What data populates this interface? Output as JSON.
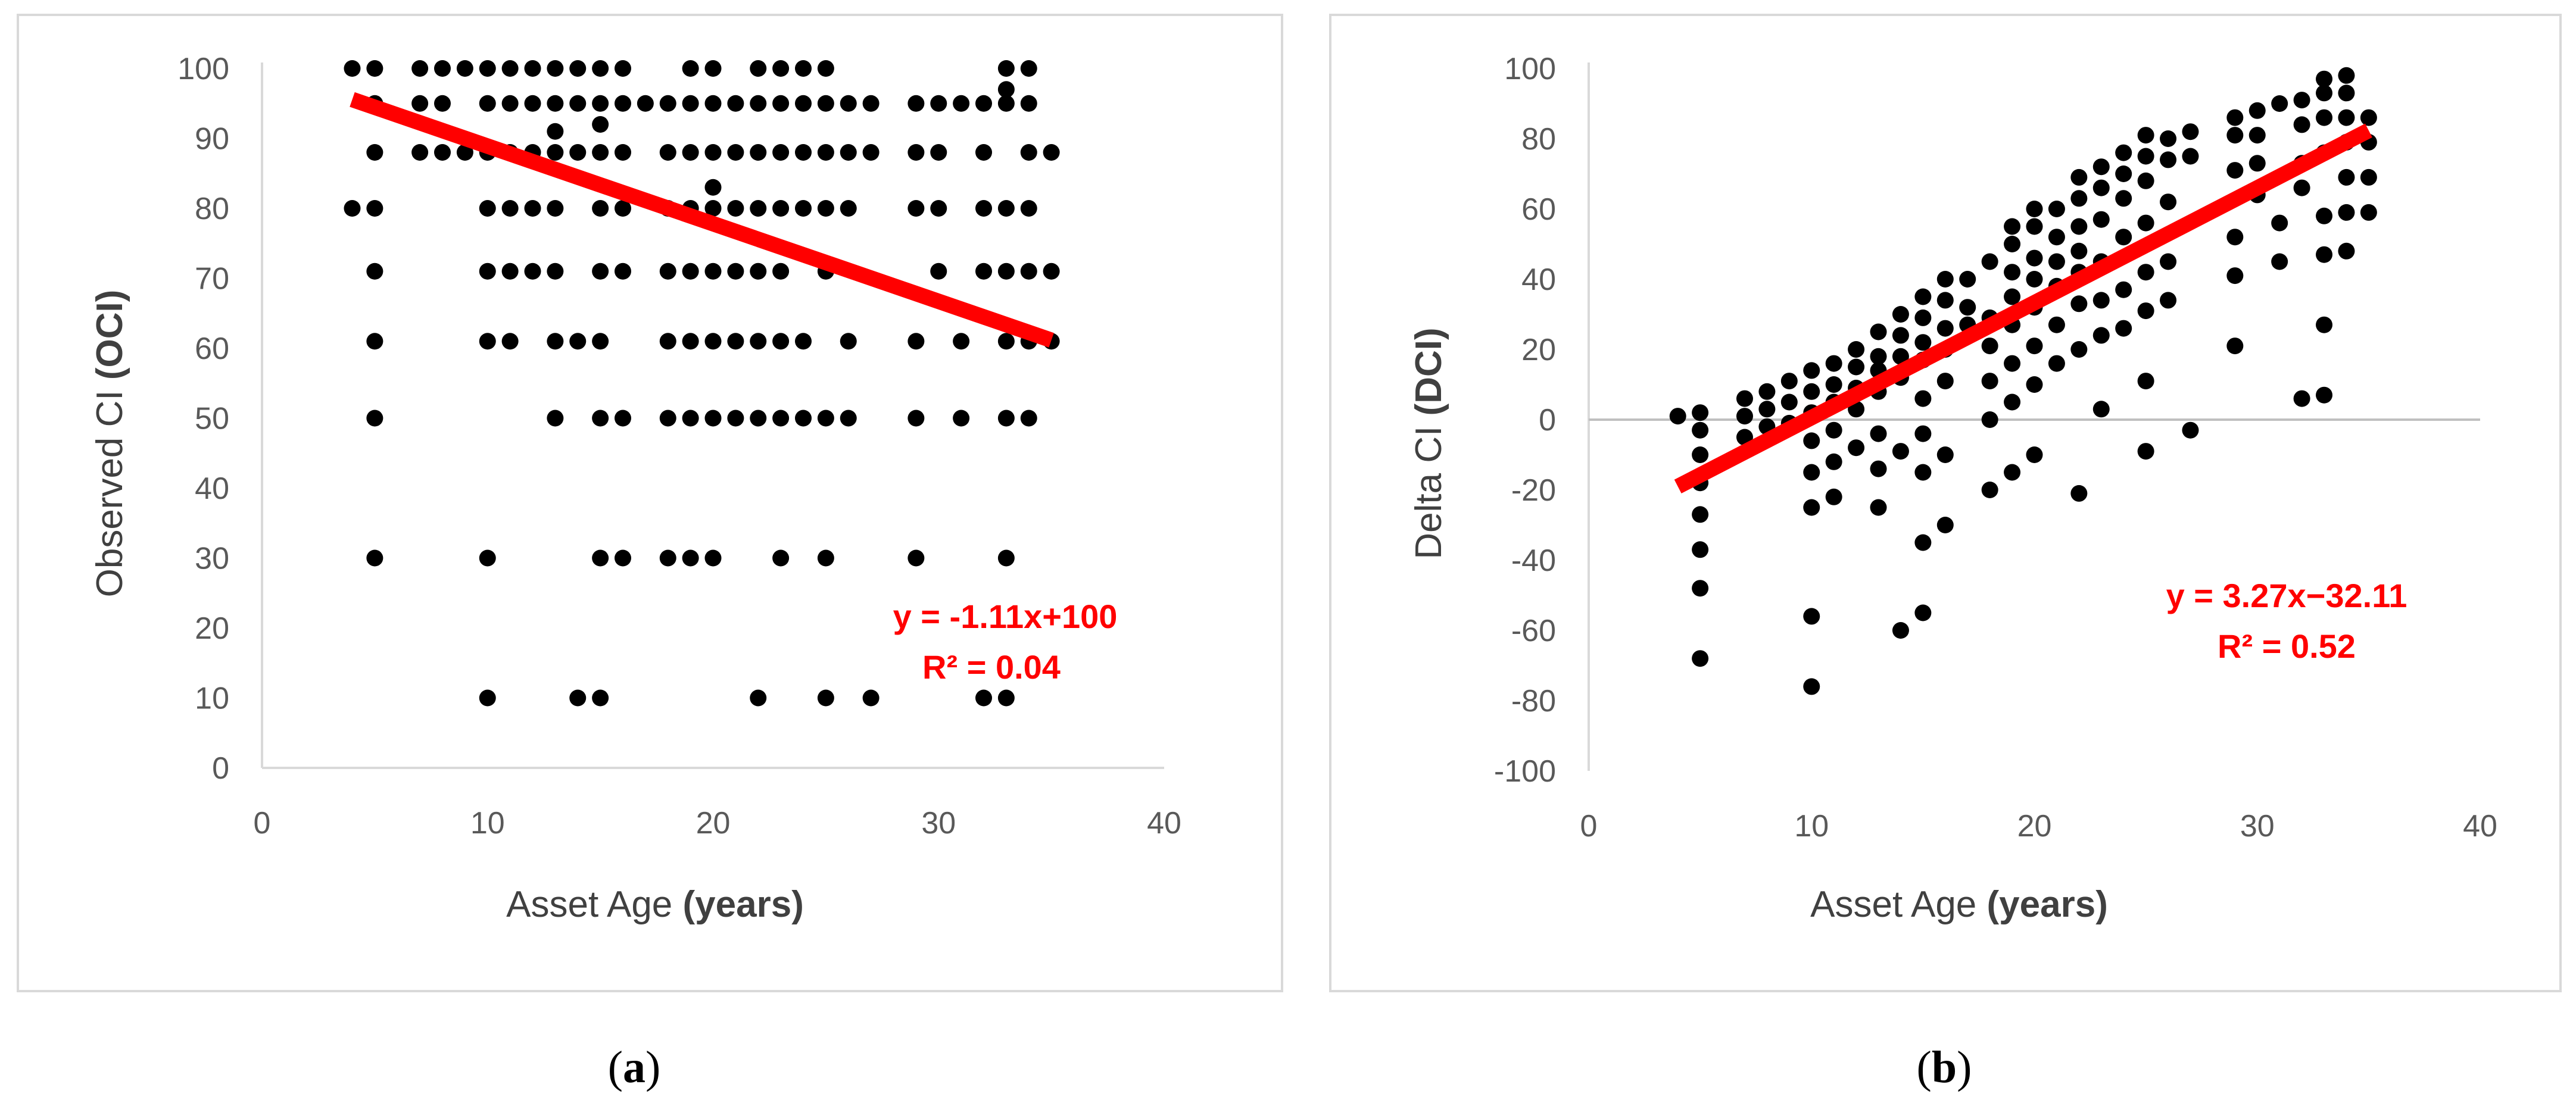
{
  "chart_data": [
    {
      "type": "scatter",
      "panel": "(a)",
      "panel_letter": "a",
      "xlabel": "Asset Age",
      "xlabel_bold": "(years)",
      "ylabel": "Observed CI",
      "ylabel_bold": "(OCI)",
      "xlim": [
        0,
        40
      ],
      "ylim": [
        0,
        100
      ],
      "xticks": [
        0,
        10,
        20,
        30,
        40
      ],
      "yticks": [
        0,
        10,
        20,
        30,
        40,
        50,
        60,
        70,
        80,
        90,
        100
      ],
      "zero_line": false,
      "trendline": {
        "slope": -1.11,
        "intercept": 100,
        "x_range": [
          4,
          35
        ],
        "color": "#ff0000"
      },
      "equation": "y = -1.11x+100",
      "r_squared": "R² = 0.04",
      "points": [
        [
          4,
          100
        ],
        [
          5,
          100
        ],
        [
          4,
          80
        ],
        [
          5,
          80
        ],
        [
          5,
          95
        ],
        [
          5,
          88
        ],
        [
          5,
          71
        ],
        [
          5,
          61
        ],
        [
          5,
          50
        ],
        [
          5,
          30
        ],
        [
          7,
          100
        ],
        [
          8,
          100
        ],
        [
          9,
          100
        ],
        [
          10,
          100
        ],
        [
          11,
          100
        ],
        [
          12,
          100
        ],
        [
          13,
          100
        ],
        [
          14,
          100
        ],
        [
          15,
          100
        ],
        [
          16,
          100
        ],
        [
          7,
          95
        ],
        [
          8,
          95
        ],
        [
          10,
          95
        ],
        [
          11,
          95
        ],
        [
          12,
          95
        ],
        [
          13,
          95
        ],
        [
          14,
          95
        ],
        [
          15,
          95
        ],
        [
          16,
          95
        ],
        [
          17,
          95
        ],
        [
          18,
          95
        ],
        [
          19,
          95
        ],
        [
          20,
          95
        ],
        [
          21,
          95
        ],
        [
          22,
          95
        ],
        [
          23,
          95
        ],
        [
          24,
          95
        ],
        [
          25,
          95
        ],
        [
          26,
          95
        ],
        [
          27,
          95
        ],
        [
          7,
          88
        ],
        [
          8,
          88
        ],
        [
          9,
          88
        ],
        [
          10,
          88
        ],
        [
          11,
          88
        ],
        [
          12,
          88
        ],
        [
          13,
          88
        ],
        [
          14,
          88
        ],
        [
          15,
          88
        ],
        [
          16,
          88
        ],
        [
          18,
          88
        ],
        [
          19,
          88
        ],
        [
          20,
          88
        ],
        [
          21,
          88
        ],
        [
          22,
          88
        ],
        [
          23,
          88
        ],
        [
          24,
          88
        ],
        [
          25,
          88
        ],
        [
          26,
          88
        ],
        [
          27,
          88
        ],
        [
          13,
          91
        ],
        [
          15,
          92
        ],
        [
          10,
          80
        ],
        [
          11,
          80
        ],
        [
          12,
          80
        ],
        [
          13,
          80
        ],
        [
          15,
          80
        ],
        [
          16,
          80
        ],
        [
          18,
          80
        ],
        [
          19,
          80
        ],
        [
          20,
          80
        ],
        [
          21,
          80
        ],
        [
          22,
          80
        ],
        [
          23,
          80
        ],
        [
          24,
          80
        ],
        [
          25,
          80
        ],
        [
          26,
          80
        ],
        [
          20,
          83
        ],
        [
          10,
          71
        ],
        [
          11,
          71
        ],
        [
          12,
          71
        ],
        [
          13,
          71
        ],
        [
          15,
          71
        ],
        [
          16,
          71
        ],
        [
          18,
          71
        ],
        [
          19,
          71
        ],
        [
          20,
          71
        ],
        [
          21,
          71
        ],
        [
          22,
          71
        ],
        [
          23,
          71
        ],
        [
          25,
          71
        ],
        [
          10,
          61
        ],
        [
          11,
          61
        ],
        [
          13,
          61
        ],
        [
          14,
          61
        ],
        [
          15,
          61
        ],
        [
          18,
          61
        ],
        [
          19,
          61
        ],
        [
          20,
          61
        ],
        [
          21,
          61
        ],
        [
          22,
          61
        ],
        [
          23,
          61
        ],
        [
          24,
          61
        ],
        [
          26,
          61
        ],
        [
          13,
          50
        ],
        [
          15,
          50
        ],
        [
          16,
          50
        ],
        [
          18,
          50
        ],
        [
          19,
          50
        ],
        [
          20,
          50
        ],
        [
          21,
          50
        ],
        [
          22,
          50
        ],
        [
          23,
          50
        ],
        [
          24,
          50
        ],
        [
          25,
          50
        ],
        [
          26,
          50
        ],
        [
          10,
          30
        ],
        [
          15,
          30
        ],
        [
          16,
          30
        ],
        [
          18,
          30
        ],
        [
          19,
          30
        ],
        [
          20,
          30
        ],
        [
          23,
          30
        ],
        [
          25,
          30
        ],
        [
          29,
          30
        ],
        [
          33,
          30
        ],
        [
          10,
          10
        ],
        [
          14,
          10
        ],
        [
          15,
          10
        ],
        [
          22,
          10
        ],
        [
          25,
          10
        ],
        [
          27,
          10
        ],
        [
          32,
          10
        ],
        [
          33,
          10
        ],
        [
          19,
          100
        ],
        [
          20,
          100
        ],
        [
          22,
          100
        ],
        [
          23,
          100
        ],
        [
          24,
          100
        ],
        [
          25,
          100
        ],
        [
          29,
          95
        ],
        [
          30,
          95
        ],
        [
          31,
          95
        ],
        [
          32,
          95
        ],
        [
          33,
          95
        ],
        [
          34,
          95
        ],
        [
          33,
          97
        ],
        [
          33,
          100
        ],
        [
          34,
          100
        ],
        [
          29,
          88
        ],
        [
          30,
          88
        ],
        [
          32,
          88
        ],
        [
          34,
          88
        ],
        [
          35,
          88
        ],
        [
          29,
          80
        ],
        [
          30,
          80
        ],
        [
          32,
          80
        ],
        [
          33,
          80
        ],
        [
          34,
          80
        ],
        [
          30,
          71
        ],
        [
          32,
          71
        ],
        [
          33,
          71
        ],
        [
          34,
          71
        ],
        [
          35,
          71
        ],
        [
          29,
          61
        ],
        [
          31,
          61
        ],
        [
          33,
          61
        ],
        [
          34,
          61
        ],
        [
          35,
          61
        ],
        [
          29,
          50
        ],
        [
          31,
          50
        ],
        [
          33,
          50
        ],
        [
          34,
          50
        ]
      ]
    },
    {
      "type": "scatter",
      "panel": "(b)",
      "panel_letter": "b",
      "xlabel": "Asset Age",
      "xlabel_bold": "(years)",
      "ylabel": "Delta CI",
      "ylabel_bold": "(DCI)",
      "xlim": [
        0,
        40
      ],
      "ylim": [
        -100,
        100
      ],
      "xticks": [
        0,
        10,
        20,
        30,
        40
      ],
      "yticks": [
        -100,
        -80,
        -60,
        -40,
        -20,
        0,
        20,
        40,
        60,
        80,
        100
      ],
      "zero_line": true,
      "trendline": {
        "slope": 3.27,
        "intercept": -32.11,
        "x_range": [
          4,
          35
        ],
        "color": "#ff0000"
      },
      "equation": "y = 3.27x−32.11",
      "r_squared": "R² = 0.52",
      "points": [
        [
          4,
          1
        ],
        [
          5,
          2
        ],
        [
          5,
          -3
        ],
        [
          5,
          -10
        ],
        [
          5,
          -18
        ],
        [
          5,
          -27
        ],
        [
          5,
          -37
        ],
        [
          5,
          -48
        ],
        [
          5,
          -68
        ],
        [
          7,
          6
        ],
        [
          7,
          1
        ],
        [
          7,
          -5
        ],
        [
          8,
          8
        ],
        [
          8,
          3
        ],
        [
          8,
          -2
        ],
        [
          9,
          11
        ],
        [
          9,
          5
        ],
        [
          9,
          -1
        ],
        [
          10,
          14
        ],
        [
          10,
          8
        ],
        [
          10,
          2
        ],
        [
          10,
          -6
        ],
        [
          10,
          -15
        ],
        [
          10,
          -25
        ],
        [
          10,
          -56
        ],
        [
          10,
          -76
        ],
        [
          11,
          16
        ],
        [
          11,
          10
        ],
        [
          11,
          5
        ],
        [
          11,
          -3
        ],
        [
          11,
          -12
        ],
        [
          11,
          -22
        ],
        [
          12,
          20
        ],
        [
          12,
          15
        ],
        [
          12,
          9
        ],
        [
          12,
          3
        ],
        [
          12,
          -8
        ],
        [
          13,
          25
        ],
        [
          13,
          18
        ],
        [
          13,
          14
        ],
        [
          13,
          8
        ],
        [
          13,
          -4
        ],
        [
          13,
          -14
        ],
        [
          13,
          -25
        ],
        [
          14,
          30
        ],
        [
          14,
          24
        ],
        [
          14,
          18
        ],
        [
          14,
          12
        ],
        [
          14,
          -9
        ],
        [
          14,
          -60
        ],
        [
          15,
          35
        ],
        [
          15,
          29
        ],
        [
          15,
          22
        ],
        [
          15,
          17
        ],
        [
          15,
          6
        ],
        [
          15,
          -4
        ],
        [
          15,
          -15
        ],
        [
          15,
          -35
        ],
        [
          15,
          -55
        ],
        [
          16,
          40
        ],
        [
          16,
          34
        ],
        [
          16,
          26
        ],
        [
          16,
          20
        ],
        [
          16,
          11
        ],
        [
          16,
          -10
        ],
        [
          16,
          -30
        ],
        [
          17,
          40
        ],
        [
          17,
          32
        ],
        [
          17,
          27
        ],
        [
          18,
          45
        ],
        [
          18,
          29
        ],
        [
          18,
          21
        ],
        [
          18,
          11
        ],
        [
          18,
          0
        ],
        [
          18,
          -20
        ],
        [
          19,
          55
        ],
        [
          19,
          50
        ],
        [
          19,
          42
        ],
        [
          19,
          35
        ],
        [
          19,
          27
        ],
        [
          19,
          16
        ],
        [
          19,
          5
        ],
        [
          19,
          -15
        ],
        [
          20,
          60
        ],
        [
          20,
          55
        ],
        [
          20,
          46
        ],
        [
          20,
          40
        ],
        [
          20,
          32
        ],
        [
          20,
          21
        ],
        [
          20,
          10
        ],
        [
          20,
          -10
        ],
        [
          21,
          60
        ],
        [
          21,
          52
        ],
        [
          21,
          45
        ],
        [
          21,
          38
        ],
        [
          21,
          27
        ],
        [
          21,
          16
        ],
        [
          22,
          69
        ],
        [
          22,
          63
        ],
        [
          22,
          55
        ],
        [
          22,
          48
        ],
        [
          22,
          42
        ],
        [
          22,
          33
        ],
        [
          22,
          20
        ],
        [
          22,
          -21
        ],
        [
          23,
          72
        ],
        [
          23,
          66
        ],
        [
          23,
          57
        ],
        [
          23,
          45
        ],
        [
          23,
          34
        ],
        [
          23,
          24
        ],
        [
          23,
          3
        ],
        [
          24,
          76
        ],
        [
          24,
          70
        ],
        [
          24,
          63
        ],
        [
          24,
          52
        ],
        [
          24,
          37
        ],
        [
          24,
          26
        ],
        [
          25,
          81
        ],
        [
          25,
          75
        ],
        [
          25,
          68
        ],
        [
          25,
          56
        ],
        [
          25,
          42
        ],
        [
          25,
          31
        ],
        [
          25,
          11
        ],
        [
          25,
          -9
        ],
        [
          26,
          80
        ],
        [
          26,
          74
        ],
        [
          26,
          62
        ],
        [
          26,
          45
        ],
        [
          26,
          34
        ],
        [
          27,
          82
        ],
        [
          27,
          75
        ],
        [
          27,
          -3
        ],
        [
          29,
          86
        ],
        [
          29,
          81
        ],
        [
          29,
          71
        ],
        [
          29,
          52
        ],
        [
          29,
          41
        ],
        [
          29,
          21
        ],
        [
          30,
          88
        ],
        [
          30,
          81
        ],
        [
          30,
          73
        ],
        [
          30,
          64
        ],
        [
          31,
          90
        ],
        [
          31,
          56
        ],
        [
          31,
          45
        ],
        [
          32,
          91
        ],
        [
          32,
          84
        ],
        [
          32,
          73
        ],
        [
          32,
          66
        ],
        [
          32,
          6
        ],
        [
          33,
          97
        ],
        [
          33,
          93
        ],
        [
          33,
          86
        ],
        [
          33,
          76
        ],
        [
          33,
          58
        ],
        [
          33,
          47
        ],
        [
          33,
          27
        ],
        [
          33,
          7
        ],
        [
          34,
          98
        ],
        [
          34,
          93
        ],
        [
          34,
          86
        ],
        [
          34,
          79
        ],
        [
          34,
          69
        ],
        [
          34,
          59
        ],
        [
          34,
          48
        ],
        [
          35,
          86
        ],
        [
          35,
          79
        ],
        [
          35,
          69
        ],
        [
          35,
          59
        ]
      ]
    }
  ]
}
